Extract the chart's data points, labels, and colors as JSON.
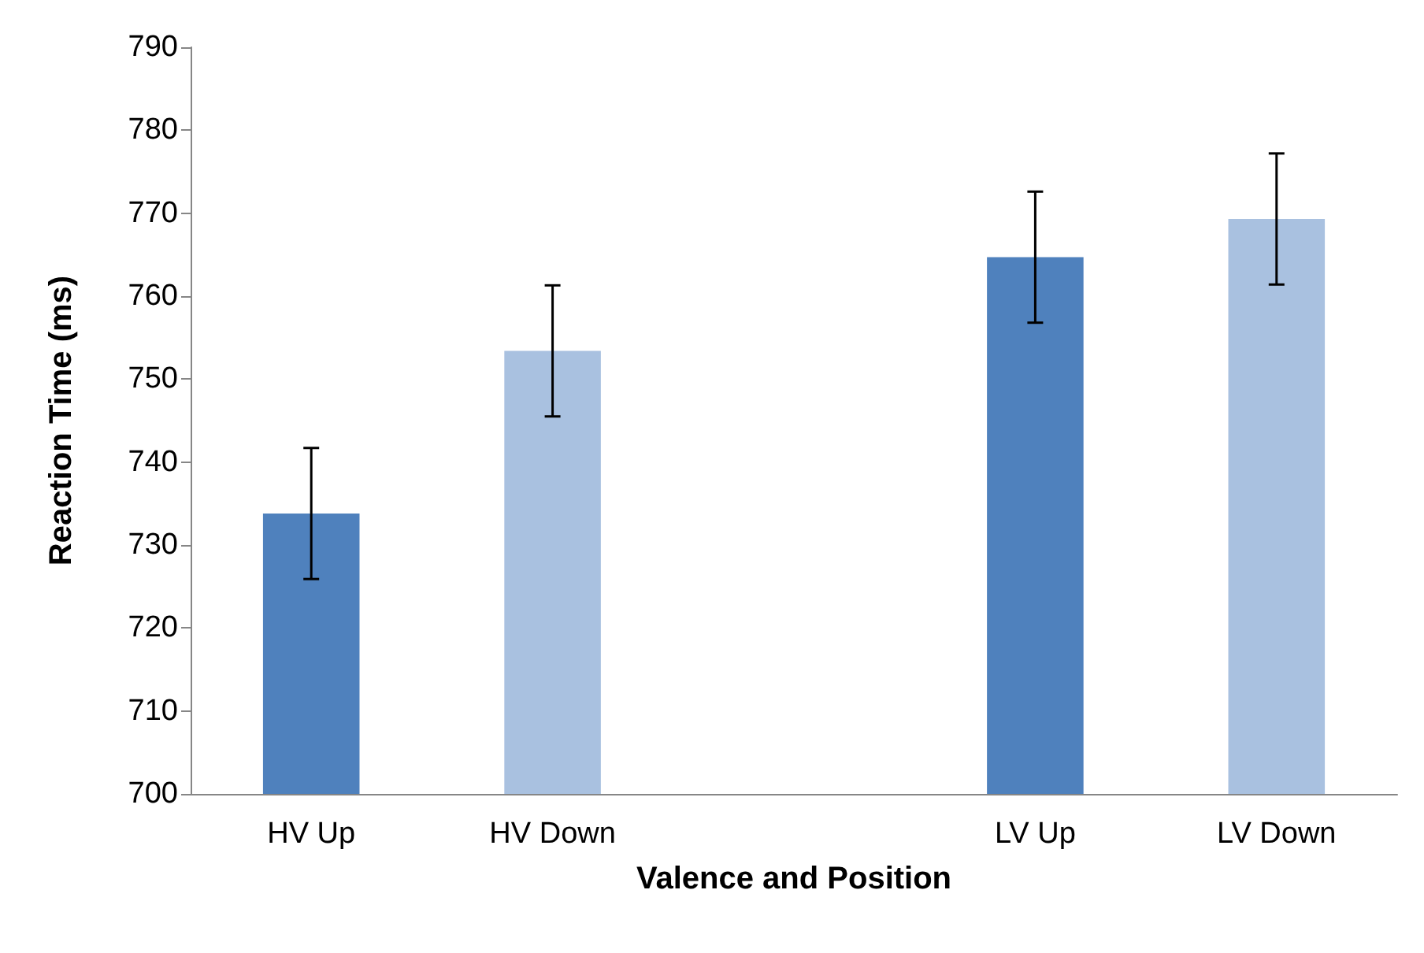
{
  "chart_data": {
    "type": "bar",
    "categories": [
      "HV Up",
      "HV Down",
      null,
      "LV Up",
      "LV Down"
    ],
    "values": [
      733.8,
      753.4,
      null,
      764.7,
      769.3
    ],
    "colors": [
      "#4f81bd",
      "#a9c1e0",
      null,
      "#4f81bd",
      "#a9c1e0"
    ],
    "errors": [
      7.9,
      7.9,
      null,
      7.9,
      7.9
    ],
    "xlabel": "Valence and Position",
    "ylabel": "Reaction Time (ms)",
    "ylim": [
      700,
      790
    ],
    "yticks": [
      700,
      710,
      720,
      730,
      740,
      750,
      760,
      770,
      780,
      790
    ],
    "grid": false
  }
}
